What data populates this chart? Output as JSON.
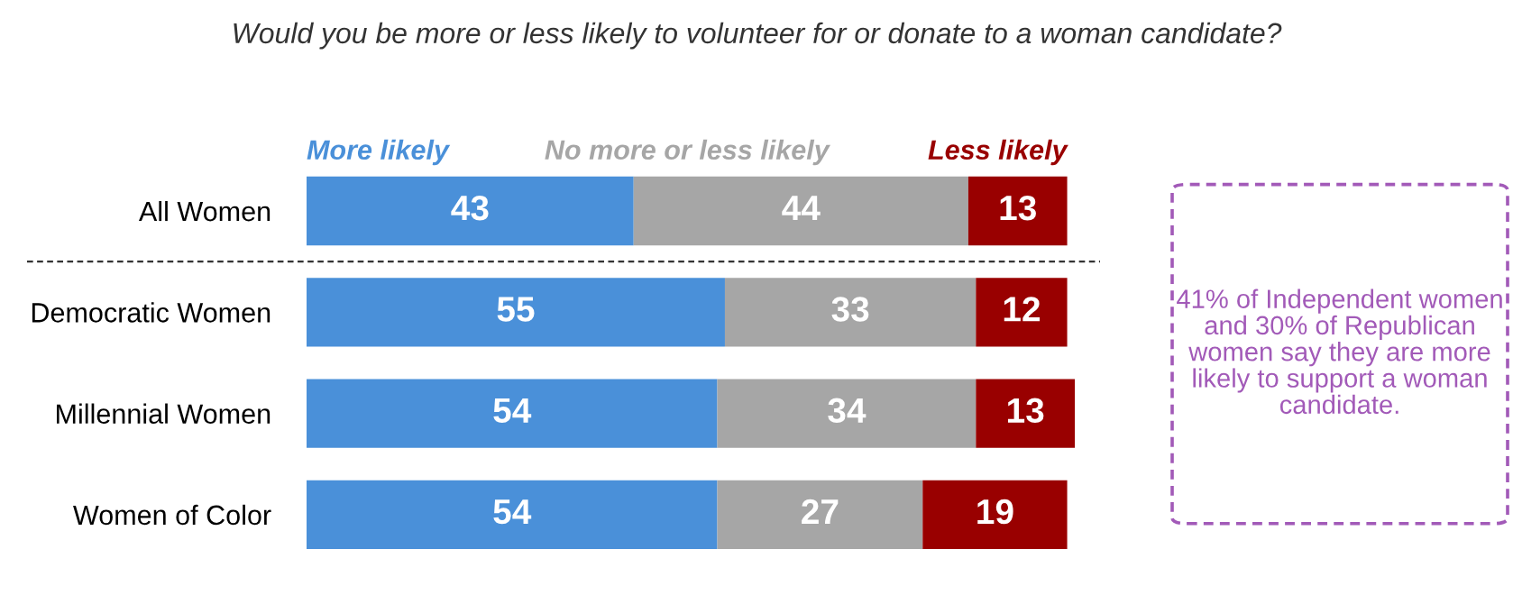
{
  "chart_data": {
    "type": "bar",
    "orientation": "horizontal",
    "stacked": true,
    "data_labels": true,
    "legend": "top",
    "grid": false,
    "title": "Would you be more or less likely to volunteer for or donate to a woman candidate?",
    "categories": [
      "All Women",
      "Democratic Women",
      "Millennial Women",
      "Women of Color"
    ],
    "series": [
      {
        "name": "More likely",
        "color": "#4a90d9",
        "values": [
          43,
          55,
          54,
          54
        ]
      },
      {
        "name": "No more or less likely",
        "color": "#a6a6a6",
        "values": [
          44,
          33,
          34,
          27
        ]
      },
      {
        "name": "Less likely",
        "color": "#990000",
        "values": [
          13,
          12,
          13,
          19
        ]
      }
    ],
    "annotations": [
      "41% of Independent women and 30% of Republican women say they are more likely to support a woman candidate."
    ]
  }
}
